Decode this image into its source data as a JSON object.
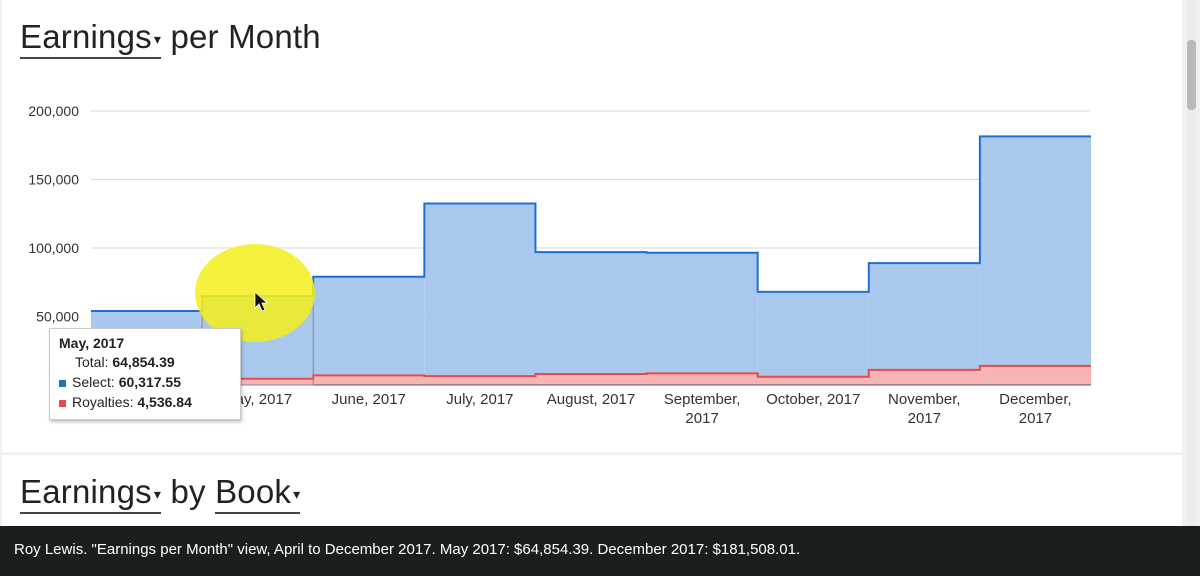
{
  "header": {
    "metric_dropdown": "Earnings",
    "title_suffix": "per Month"
  },
  "section2": {
    "metric_dropdown": "Earnings",
    "by_label": "by",
    "group_dropdown": "Book"
  },
  "tooltip": {
    "title": "May, 2017",
    "total_label": "Total:",
    "total_value": "64,854.39",
    "select_label": "Select:",
    "select_value": "60,317.55",
    "royalties_label": "Royalties:",
    "royalties_value": "4,536.84"
  },
  "caption": "Roy Lewis. \"Earnings per Month\" view, April to December 2017. May 2017: $64,854.39. December 2017: $181,508.01.",
  "colors": {
    "select": "#1f6fd0",
    "select_fill": "#a9c8ee",
    "royalties": "#e9494b",
    "royalties_fill": "#f7b4b4"
  },
  "chart_data": {
    "type": "area",
    "categories": [
      "April, 2017",
      "May, 2017",
      "June, 2017",
      "July, 2017",
      "August, 2017",
      "September, 2017",
      "October, 2017",
      "November, 2017",
      "December, 2017"
    ],
    "series": [
      {
        "name": "Royalties",
        "values": [
          4000,
          4536.84,
          7000,
          6500,
          8000,
          8500,
          6000,
          11000,
          14000
        ]
      },
      {
        "name": "Select",
        "values": [
          50000,
          60317.55,
          72000,
          126000,
          89000,
          88000,
          62000,
          78000,
          167508.01
        ]
      }
    ],
    "totals": [
      54000,
      64854.39,
      79000,
      132500,
      97000,
      96500,
      68000,
      89000,
      181508.01
    ],
    "ylim": [
      0,
      200000
    ],
    "yticks": [
      50000,
      100000,
      150000,
      200000
    ],
    "ytick_labels": [
      "50,000",
      "100,000",
      "150,000",
      "200,000"
    ],
    "stacked": true,
    "step": true,
    "grid": true
  }
}
